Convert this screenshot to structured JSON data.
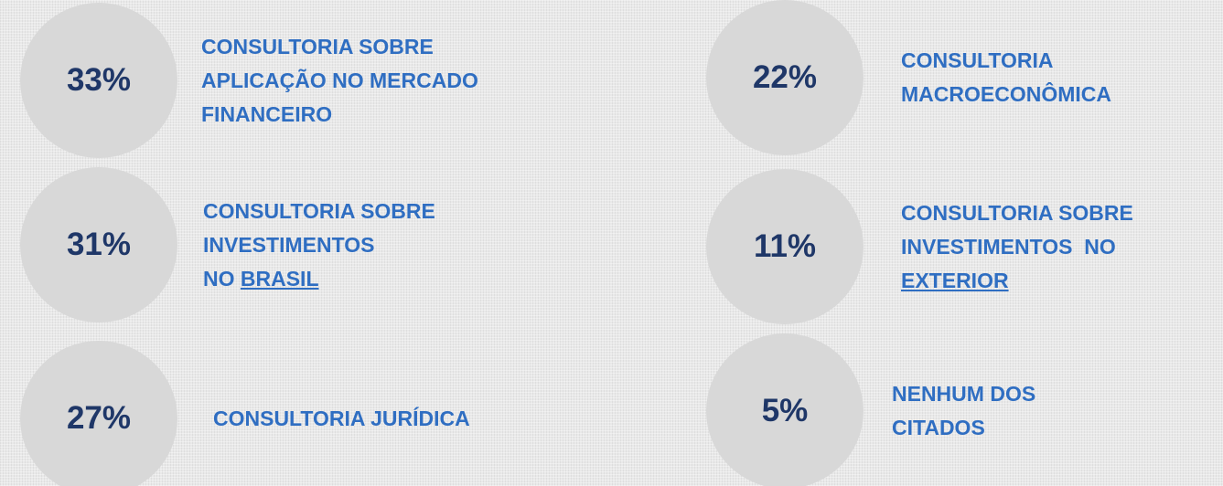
{
  "items": [
    {
      "percent": "33%",
      "lines": [
        [
          "CONSULTORIA SOBRE"
        ],
        [
          "APLICAÇÃO NO MERCADO"
        ],
        [
          "FINANCEIRO"
        ]
      ]
    },
    {
      "percent": "22%",
      "lines": [
        [
          "CONSULTORIA"
        ],
        [
          "MACROECONÔMICA"
        ]
      ]
    },
    {
      "percent": "31%",
      "lines": [
        [
          "CONSULTORIA SOBRE"
        ],
        [
          "INVESTIMENTOS"
        ],
        [
          "NO ",
          {
            "text": "BRASIL",
            "underline": true
          }
        ]
      ]
    },
    {
      "percent": "11%",
      "lines": [
        [
          "CONSULTORIA SOBRE"
        ],
        [
          "INVESTIMENTOS  NO"
        ],
        [
          {
            "text": "EXTERIOR",
            "underline": true
          }
        ]
      ]
    },
    {
      "percent": "27%",
      "lines": [
        [
          "CONSULTORIA JURÍDICA"
        ]
      ]
    },
    {
      "percent": "5%",
      "lines": [
        [
          "NENHUM DOS"
        ],
        [
          "CITADOS"
        ]
      ]
    }
  ]
}
